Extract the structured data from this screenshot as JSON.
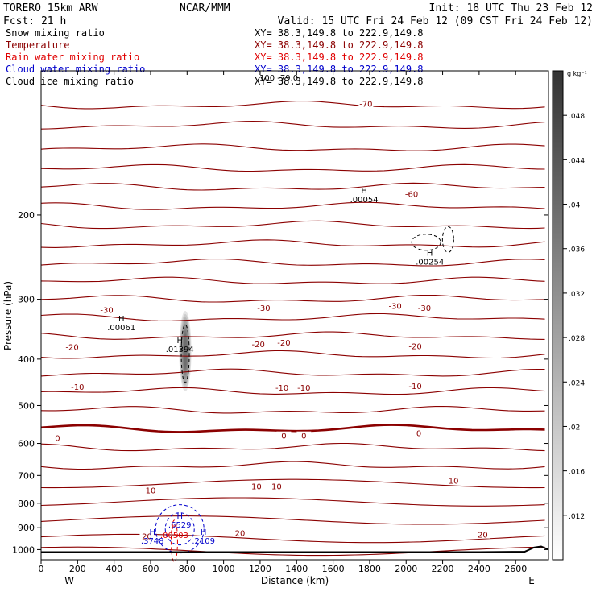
{
  "header": {
    "model": "TORERO 15km ARW",
    "org": "NCAR/MMM",
    "init": "Init: 18 UTC Thu 23 Feb 12",
    "fcst": "Fcst:   21 h",
    "valid": "Valid: 15 UTC Fri 24 Feb 12 (09 CST Fri 24 Feb 12)"
  },
  "legend": [
    {
      "label": "Snow mixing ratio",
      "xy": "XY=  38.3,149.8 to 222.9,149.8",
      "color": "#000000"
    },
    {
      "label": "Temperature",
      "xy": "XY=  38.3,149.8 to 222.9,149.8",
      "color": "#8b0000"
    },
    {
      "label": "Rain water mixing ratio",
      "xy": "XY=  38.3,149.8 to 222.9,149.8",
      "color": "#e00000"
    },
    {
      "label": "Cloud water mixing ratio",
      "xy": "XY=  38.3,149.8 to 222.9,149.8",
      "color": "#0000cc"
    },
    {
      "label": "Cloud ice mixing ratio",
      "xy": "XY=  38.3,149.8 to 222.9,149.8",
      "color": "#000000"
    }
  ],
  "overlay_text": "100  -79.0",
  "colorbar": {
    "unit": "g kg⁻¹",
    "ticks": [
      "0.012",
      "0.016",
      "0.02",
      "0.024",
      "0.028",
      "0.032",
      "0.036",
      "0.04",
      "0.044",
      "0.048"
    ],
    "tick_labels": [
      ".012",
      ".016",
      ".02",
      ".024",
      ".028",
      ".032",
      ".036",
      ".04",
      ".044",
      ".048"
    ]
  },
  "chart_data": {
    "type": "contour",
    "xlabel": "Distance (km)",
    "ylabel": "Pressure (hPa)",
    "xlim": [
      0,
      2780
    ],
    "ylim": [
      1050,
      100
    ],
    "y_scale": "log",
    "xticks": [
      0,
      200,
      400,
      600,
      800,
      1000,
      1200,
      1400,
      1600,
      1800,
      2000,
      2200,
      2400,
      2600
    ],
    "yticks": [
      200,
      300,
      400,
      500,
      600,
      700,
      800,
      900,
      1000
    ],
    "x_end_labels": {
      "left": "W",
      "right": "E"
    },
    "temperature_contour_labels": [
      {
        "value": "-70",
        "x": 1780,
        "p": 118
      },
      {
        "value": "-60",
        "x": 2030,
        "p": 182
      },
      {
        "value": "-30",
        "x": 360,
        "p": 318
      },
      {
        "value": "-30",
        "x": 1220,
        "p": 315
      },
      {
        "value": "-30",
        "x": 1940,
        "p": 312
      },
      {
        "value": "-30",
        "x": 2100,
        "p": 315
      },
      {
        "value": "-20",
        "x": 170,
        "p": 380
      },
      {
        "value": "-20",
        "x": 1190,
        "p": 375
      },
      {
        "value": "-20",
        "x": 1330,
        "p": 372
      },
      {
        "value": "-20",
        "x": 2050,
        "p": 378
      },
      {
        "value": "-10",
        "x": 200,
        "p": 460
      },
      {
        "value": "-10",
        "x": 1320,
        "p": 462
      },
      {
        "value": "-10",
        "x": 1440,
        "p": 462
      },
      {
        "value": "-10",
        "x": 2050,
        "p": 458
      },
      {
        "value": "0",
        "x": 90,
        "p": 588
      },
      {
        "value": "0",
        "x": 1330,
        "p": 582
      },
      {
        "value": "0",
        "x": 1440,
        "p": 582
      },
      {
        "value": "0",
        "x": 2070,
        "p": 575
      },
      {
        "value": "10",
        "x": 600,
        "p": 757
      },
      {
        "value": "10",
        "x": 1180,
        "p": 743
      },
      {
        "value": "10",
        "x": 1290,
        "p": 743
      },
      {
        "value": "10",
        "x": 2260,
        "p": 723
      },
      {
        "value": "20",
        "x": 1090,
        "p": 930
      },
      {
        "value": "20",
        "x": 2420,
        "p": 937
      },
      {
        "value": "20",
        "x": 580,
        "p": 943
      }
    ],
    "extrema_labels": [
      {
        "mark": "H",
        "value": ".00054",
        "x": 1770,
        "p": 183,
        "color": "#000000"
      },
      {
        "mark": "H",
        "value": ".00254",
        "x": 2130,
        "p": 247,
        "color": "#000000"
      },
      {
        "mark": "H",
        "value": ".00061",
        "x": 440,
        "p": 339,
        "color": "#000000"
      },
      {
        "mark": "H",
        "value": ".01394",
        "x": 760,
        "p": 376,
        "color": "#000000"
      },
      {
        "mark": "H",
        "value": ".6529",
        "x": 760,
        "p": 876,
        "color": "#0000cc"
      },
      {
        "mark": "H",
        "value": ".3748",
        "x": 610,
        "p": 945,
        "color": "#0000cc"
      },
      {
        "mark": "H",
        "value": ".2109",
        "x": 890,
        "p": 945,
        "color": "#0000cc"
      },
      {
        "mark": "H",
        "value": ".00503",
        "x": 730,
        "p": 921,
        "color": "#e00000"
      }
    ],
    "cloud_ice_max": {
      "x": 790,
      "p": 385,
      "value": 0.01394
    },
    "terrain_surface": [
      {
        "x": 0,
        "p": 1012
      },
      {
        "x": 2400,
        "p": 1012
      },
      {
        "x": 2650,
        "p": 1010
      },
      {
        "x": 2700,
        "p": 990
      },
      {
        "x": 2740,
        "p": 985
      },
      {
        "x": 2780,
        "p": 1000
      }
    ]
  }
}
